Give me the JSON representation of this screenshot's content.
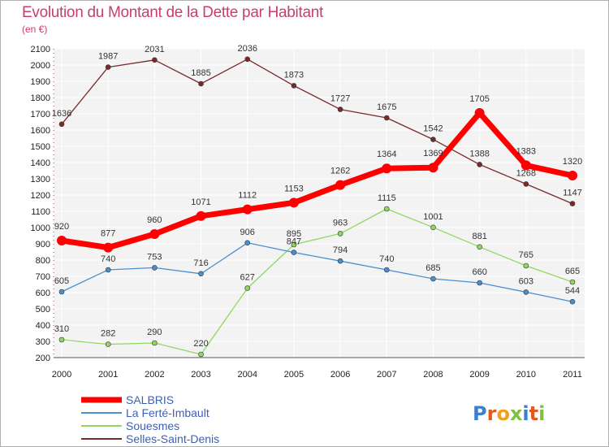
{
  "title": "Evolution du Montant de la Dette par Habitant",
  "subtitle": "(en €)",
  "logo_text": "Proxiti",
  "chart_data": {
    "type": "line",
    "x": [
      "2000",
      "2001",
      "2002",
      "2003",
      "2004",
      "2005",
      "2006",
      "2007",
      "2008",
      "2009",
      "2010",
      "2011"
    ],
    "ylim": [
      200,
      2100
    ],
    "yticks": [
      200,
      300,
      400,
      500,
      600,
      700,
      800,
      900,
      1000,
      1100,
      1200,
      1300,
      1400,
      1500,
      1600,
      1700,
      1800,
      1900,
      2000,
      2100
    ],
    "grid": true,
    "legend_position": "bottom-left",
    "series": [
      {
        "name": "Selles-Saint-Denis",
        "color": "#7a2a2a",
        "values": [
          1636,
          1987,
          2031,
          1885,
          2036,
          1873,
          1727,
          1675,
          1542,
          1388,
          1268,
          1147
        ]
      },
      {
        "name": "Souesmes",
        "color": "#90d860",
        "values": [
          310,
          282,
          290,
          220,
          627,
          895,
          963,
          1115,
          1001,
          881,
          765,
          665
        ]
      },
      {
        "name": "La Ferté-Imbault",
        "color": "#4a90d0",
        "values": [
          605,
          740,
          753,
          716,
          906,
          847,
          794,
          740,
          685,
          660,
          603,
          544
        ]
      },
      {
        "name": "SALBRIS",
        "color": "#ff0000",
        "values": [
          920,
          877,
          960,
          1071,
          1112,
          1153,
          1262,
          1364,
          1369,
          1705,
          1383,
          1320
        ]
      }
    ],
    "legend_order": [
      "SALBRIS",
      "La Ferté-Imbault",
      "Souesmes",
      "Selles-Saint-Denis"
    ]
  }
}
